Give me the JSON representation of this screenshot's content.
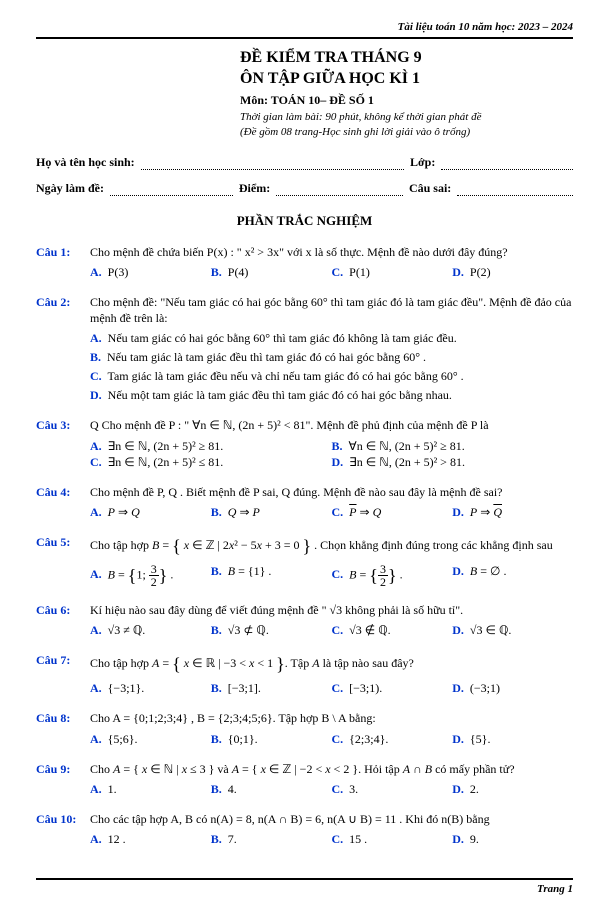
{
  "doc_header": "Tài liệu toán 10 năm học: 2023 – 2024",
  "title_l1": "ĐỀ KIỂM TRA THÁNG 9",
  "title_l2": "ÔN TẬP GIỮA HỌC KÌ 1",
  "title_l3": "Môn: TOÁN 10– ĐỀ SỐ 1",
  "title_l4": "Thời gian làm bài: 90 phút, không kể thời gian phát đề",
  "title_l5": "(Đề gồm 08 trang-Học sinh ghi lời giải vào ô trống)",
  "row1_a": "Họ và tên học sinh:",
  "row1_b": "Lớp:",
  "row2_a": "Ngày làm đề:",
  "row2_b": "Điểm:",
  "row2_c": "Câu sai:",
  "section": "PHẦN TRẮC NGHIỆM",
  "footer": "Trang 1",
  "questions": [
    {
      "num": "Câu 1:",
      "stem": "Cho mệnh đề chứa biến  P(x) : \" x² > 3x\" với  x  là số thực. Mệnh đề nào dưới đây đúng?",
      "opts": [
        "P(3)",
        "P(4)",
        "P(1)",
        "P(2)"
      ]
    },
    {
      "num": "Câu 2:",
      "stem": "Cho mệnh đề: \"Nếu tam giác có hai góc bằng 60° thì tam giác đó là tam giác đều\". Mệnh đề đảo của mệnh đề trên là:",
      "sublist": [
        {
          "l": "A.",
          "t": "Nếu tam giác có hai góc bằng  60°  thì tam giác đó không là tam giác đều."
        },
        {
          "l": "B.",
          "t": "Nếu tam giác là tam giác đều thì tam giác đó có hai góc bằng  60° ."
        },
        {
          "l": "C.",
          "t": "Tam giác là tam giác đều nếu và chỉ nếu tam giác đó có hai góc bằng  60° ."
        },
        {
          "l": "D.",
          "t": "Nếu một tam giác là tam giác đều thì tam giác đó có hai góc bằng nhau."
        }
      ]
    },
    {
      "num": "Câu 3:",
      "stem": "Q Cho mệnh đề  P : \" ∀n ∈ ℕ,  (2n + 5)² < 81\". Mệnh đề phủ định của mệnh đề  P  là",
      "opts2": [
        " ∃n ∈ ℕ, (2n + 5)² ≥ 81.",
        " ∀n ∈ ℕ, (2n + 5)² ≥ 81.",
        " ∃n ∈ ℕ, (2n + 5)² ≤ 81.",
        " ∃n ∈ ℕ, (2n + 5)² > 81."
      ]
    },
    {
      "num": "Câu 4:",
      "stem": "Cho mệnh đề  P, Q . Biết mệnh đề  P  sai,  Q  đúng. Mệnh đề nào sau đây là mệnh đề sai?",
      "opts_html": [
        "<i>P</i> ⇒ <i>Q</i>",
        "<i>Q</i> ⇒ <i>P</i>",
        "<span class='ov'><i>P</i></span> ⇒ <i>Q</i>",
        "<i>P</i> ⇒ <span class='ov'><i>Q</i></span>"
      ]
    },
    {
      "num": "Câu 5:",
      "stem_html": "Cho tập hợp  <i>B</i> = <span class='lbrace'>{</span> <i>x</i> ∈ ℤ | 2<i>x</i>² − 5<i>x</i> + 3 = 0 <span class='lbrace'>}</span> . Chọn khẳng định đúng trong các khẳng định sau",
      "opts_html": [
        "<i>B</i> = <span class='lbrace'>{</span>1; <span class='frac'><span class='n'>3</span><span class='d'>2</span></span><span class='lbrace'>}</span> .",
        "<i>B</i> = {1} .",
        "<i>B</i> = <span class='lbrace'>{</span><span class='frac'><span class='n'>3</span><span class='d'>2</span></span><span class='lbrace'>}</span> .",
        "<i>B</i> = ∅ ."
      ]
    },
    {
      "num": "Câu 6:",
      "stem": "Kí hiệu nào sau đây dùng để viết đúng mệnh đề \" √3  không phải là số hữu tỉ\".",
      "opts_html": [
        "√3 ≠ ℚ.",
        "√3 ⊄ ℚ.",
        "√3 ∉ ℚ.",
        "√3 ∈ ℚ."
      ]
    },
    {
      "num": "Câu 7:",
      "stem_html": "Cho tập hợp  <i>A</i> = <span class='lbrace'>{</span> <i>x</i> ∈ ℝ | −3 &lt; <i>x</i> &lt; 1 <span class='lbrace'>}</span>. Tập  <i>A</i>  là tập nào sau đây?",
      "opts": [
        "{−3;1}.",
        "[−3;1].",
        "[−3;1).",
        "(−3;1)"
      ]
    },
    {
      "num": "Câu 8:",
      "stem": "Cho  A = {0;1;2;3;4} , B = {2;3;4;5;6}.  Tập hợp  B \\ A  bằng:",
      "opts": [
        "{5;6}.",
        "{0;1}.",
        "{2;3;4}.",
        "{5}."
      ]
    },
    {
      "num": "Câu 9:",
      "stem_html": "Cho  <i>A</i> = { <i>x</i> ∈ ℕ | <i>x</i> ≤ 3 }  và  <i>A</i> = { <i>x</i> ∈ ℤ | −2 &lt; <i>x</i> &lt; 2 }. Hỏi tập  <i>A</i> ∩ <i>B</i>  có mấy phần tử?",
      "opts": [
        "1.",
        "4.",
        "3.",
        "2."
      ]
    },
    {
      "num": "Câu 10:",
      "stem": "Cho các tập hợp  A, B  có  n(A) = 8, n(A ∩ B) = 6, n(A ∪ B) = 11 . Khi đó  n(B)  bằng",
      "opts": [
        "12 .",
        "7.",
        "15 .",
        "9."
      ]
    }
  ]
}
